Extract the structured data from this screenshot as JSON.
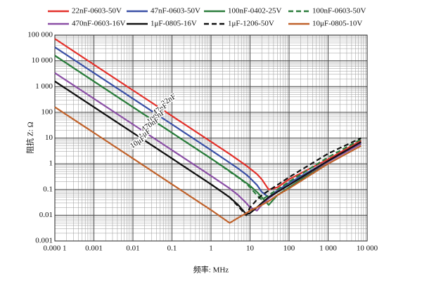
{
  "chart_data": {
    "type": "line",
    "xlabel": "频率: MHz",
    "ylabel": "阻抗 Z: Ω",
    "log_x": true,
    "log_y": true,
    "grid": true,
    "x": [
      0.0001,
      0.001,
      0.01,
      0.1,
      1,
      3,
      5,
      8,
      10,
      15,
      20,
      30,
      50,
      100,
      1000,
      7000
    ],
    "series": [
      {
        "name": "22nF-0603-50V",
        "color": "#e3312b",
        "dash": false,
        "values": [
          72000,
          7200,
          720,
          72,
          7.2,
          2.4,
          1.4,
          0.85,
          0.65,
          0.4,
          0.25,
          0.1,
          0.12,
          0.25,
          1.5,
          8
        ]
      },
      {
        "name": "47nF-0603-50V",
        "color": "#3a50a6",
        "dash": false,
        "values": [
          34000,
          3400,
          340,
          34,
          3.4,
          1.1,
          0.65,
          0.38,
          0.28,
          0.15,
          0.08,
          0.05,
          0.09,
          0.18,
          1.3,
          7
        ]
      },
      {
        "name": "100nF-0402-25V",
        "color": "#2b7d3c",
        "dash": false,
        "values": [
          16000,
          1600,
          160,
          16,
          1.6,
          0.52,
          0.3,
          0.18,
          0.14,
          0.08,
          0.05,
          0.025,
          0.06,
          0.12,
          1.2,
          6
        ]
      },
      {
        "name": "100nF-0603-50V",
        "color": "#2b7d3c",
        "dash": true,
        "values": [
          15900,
          1590,
          159,
          15.9,
          1.6,
          0.5,
          0.29,
          0.17,
          0.12,
          0.06,
          0.04,
          0.06,
          0.1,
          0.2,
          1.8,
          9
        ]
      },
      {
        "name": "470nF-0603-16V",
        "color": "#8b4fa6",
        "dash": false,
        "values": [
          3400,
          340,
          34,
          3.4,
          0.34,
          0.11,
          0.06,
          0.03,
          0.02,
          0.015,
          0.025,
          0.045,
          0.08,
          0.15,
          1.2,
          6
        ]
      },
      {
        "name": "1μF-0805-16V",
        "color": "#111111",
        "dash": false,
        "values": [
          1600,
          160,
          16,
          1.6,
          0.16,
          0.05,
          0.025,
          0.011,
          0.012,
          0.02,
          0.03,
          0.05,
          0.08,
          0.15,
          1.3,
          7
        ]
      },
      {
        "name": "1μF-1206-50V",
        "color": "#111111",
        "dash": true,
        "values": [
          1600,
          160,
          16,
          1.6,
          0.16,
          0.05,
          0.022,
          0.01,
          0.02,
          0.04,
          0.06,
          0.09,
          0.15,
          0.3,
          2.5,
          10
        ]
      },
      {
        "name": "10μF-0805-10V",
        "color": "#c0622b",
        "dash": false,
        "values": [
          160,
          16,
          1.6,
          0.16,
          0.016,
          0.005,
          0.008,
          0.012,
          0.015,
          0.02,
          0.025,
          0.035,
          0.06,
          0.11,
          1,
          5
        ]
      }
    ],
    "annotations": [
      "22nF",
      "47nF",
      "100nF",
      "470nF",
      "1μF",
      "10μF"
    ],
    "xlim": [
      0.0001,
      10000
    ],
    "xticks": [
      {
        "value": 0.0001,
        "label": "0.000 1"
      },
      0.001,
      0.01,
      0.1,
      1,
      10,
      100,
      {
        "value": 1000,
        "label": "1 000"
      },
      {
        "value": 10000,
        "label": "10 000"
      }
    ],
    "ylim": [
      0.001,
      100000
    ],
    "yticks": [
      0.001,
      0.01,
      0.1,
      1,
      10,
      100,
      {
        "value": 1000,
        "label": "1 000"
      },
      {
        "value": 10000,
        "label": "10 000"
      },
      {
        "value": 100000,
        "label": "100 000"
      }
    ]
  }
}
